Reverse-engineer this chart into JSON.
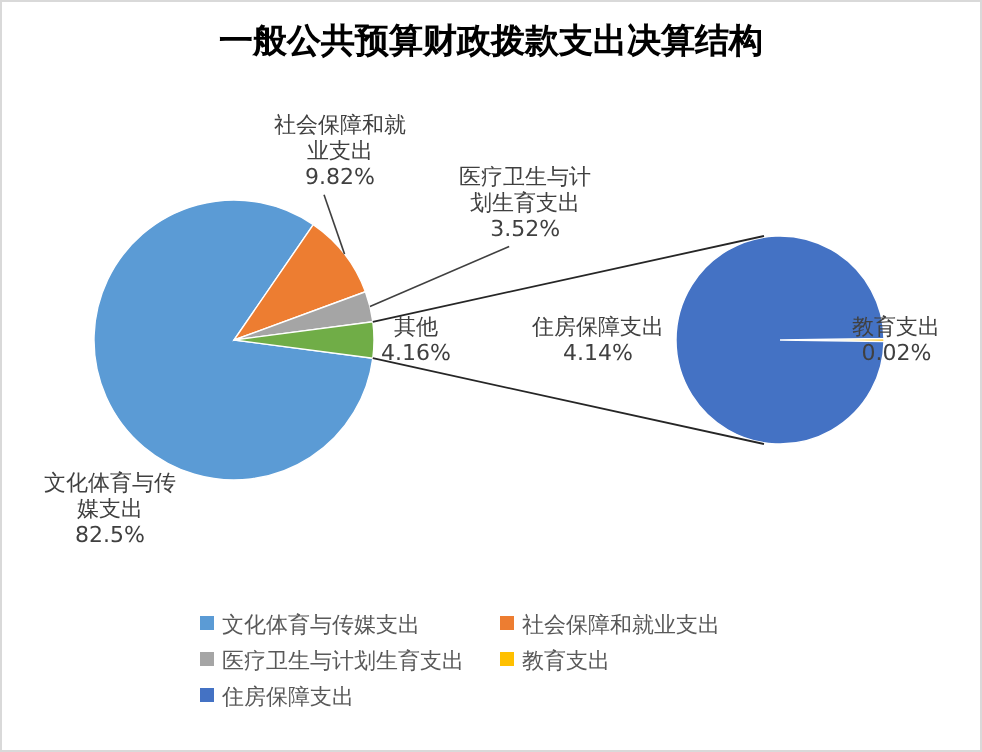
{
  "chart_data": [
    {
      "type": "pie",
      "title": "一般公共预算财政拨款支出决算结构",
      "categories": [
        "文化体育与传媒支出",
        "社会保障和就业支出",
        "医疗卫生与计划生育支出",
        "其他"
      ],
      "values": [
        82.5,
        9.82,
        3.52,
        4.16
      ],
      "colors": [
        "#5b9bd5",
        "#ed7d31",
        "#a5a5a5",
        "#70ad47"
      ],
      "value_labels": [
        "82.5%",
        "9.82%",
        "3.52%",
        "4.16%"
      ],
      "legend": "bottom"
    },
    {
      "type": "pie",
      "categories": [
        "教育支出",
        "住房保障支出"
      ],
      "values": [
        0.02,
        4.14
      ],
      "colors": [
        "#ffc000",
        "#4472c4"
      ],
      "value_labels": [
        "0.02%",
        "4.14%"
      ],
      "legend": "bottom"
    }
  ]
}
